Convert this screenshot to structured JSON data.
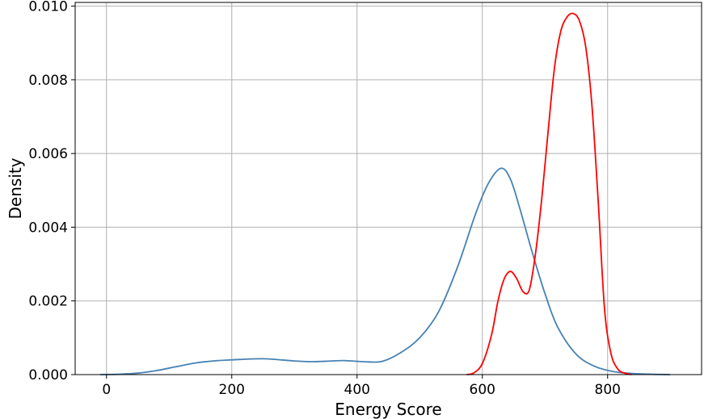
{
  "chart_data": {
    "type": "line",
    "title": "",
    "xlabel": "Energy Score",
    "ylabel": "Density",
    "xlim": [
      -50,
      950
    ],
    "ylim": [
      0,
      0.0101
    ],
    "grid": true,
    "x_ticks": [
      0,
      200,
      400,
      600,
      800
    ],
    "x_tick_labels": [
      "0",
      "200",
      "400",
      "600",
      "800"
    ],
    "y_ticks": [
      0,
      0.002,
      0.004,
      0.006,
      0.008,
      0.01
    ],
    "y_tick_labels": [
      "0.000",
      "0.002",
      "0.004",
      "0.006",
      "0.008",
      "0.010"
    ],
    "series": [
      {
        "color": "#4682b4",
        "x": [
          -10,
          20,
          50,
          80,
          110,
          140,
          170,
          200,
          250,
          300,
          330,
          360,
          380,
          410,
          440,
          470,
          500,
          530,
          560,
          590,
          610,
          630,
          645,
          660,
          680,
          700,
          720,
          750,
          780,
          810,
          840,
          870,
          900
        ],
        "y": [
          0.0,
          1e-05,
          4e-05,
          0.00011,
          0.00021,
          0.00031,
          0.00037,
          0.0004,
          0.00043,
          0.00037,
          0.00035,
          0.00037,
          0.00038,
          0.00035,
          0.00036,
          0.0006,
          0.001,
          0.0017,
          0.0029,
          0.0044,
          0.0052,
          0.0056,
          0.0053,
          0.0045,
          0.0033,
          0.0022,
          0.0013,
          0.00055,
          0.00022,
          8e-05,
          3e-05,
          1e-05,
          0.0
        ]
      },
      {
        "color": "#ff0000",
        "x": [
          575,
          585,
          600,
          615,
          625,
          635,
          645,
          655,
          665,
          675,
          685,
          695,
          705,
          715,
          725,
          735,
          745,
          755,
          765,
          775,
          785,
          795,
          805,
          815,
          825,
          838
        ],
        "y": [
          0.0,
          3e-05,
          0.0003,
          0.0011,
          0.002,
          0.0026,
          0.0028,
          0.0026,
          0.00225,
          0.0023,
          0.0033,
          0.0048,
          0.0066,
          0.0083,
          0.0093,
          0.0097,
          0.0098,
          0.0096,
          0.0089,
          0.0073,
          0.0047,
          0.0018,
          0.0006,
          0.00018,
          5e-05,
          0.0
        ]
      }
    ]
  }
}
